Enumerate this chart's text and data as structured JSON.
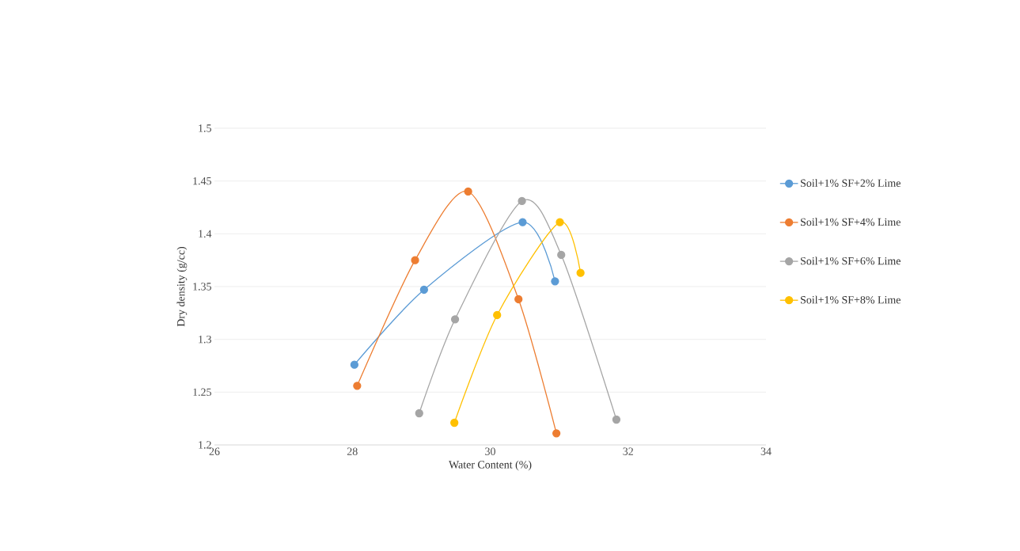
{
  "chart_data": {
    "type": "line",
    "xlabel": "Water Content (%)",
    "ylabel": "Dry density (g/cc)",
    "xlim": [
      26,
      34
    ],
    "xticks": [
      26,
      28,
      30,
      32,
      34
    ],
    "ylim": [
      1.2,
      1.5
    ],
    "yticks": [
      1.2,
      1.25,
      1.3,
      1.35,
      1.4,
      1.45,
      1.5
    ],
    "grid": "y",
    "legend": "right",
    "marker": "circle",
    "series": [
      {
        "name": "Soil+1% SF+2% Lime",
        "color": "#5b9bd5",
        "x": [
          28.03,
          29.04,
          30.47,
          30.94
        ],
        "values": [
          1.276,
          1.347,
          1.411,
          1.355
        ]
      },
      {
        "name": "Soil+1% SF+4% Lime",
        "color": "#ed7d31",
        "x": [
          28.07,
          28.91,
          29.68,
          30.41,
          30.96
        ],
        "values": [
          1.256,
          1.375,
          1.44,
          1.338,
          1.211
        ]
      },
      {
        "name": "Soil+1% SF+6% Lime",
        "color": "#a5a5a5",
        "x": [
          28.97,
          29.49,
          30.46,
          31.03,
          31.83
        ],
        "values": [
          1.23,
          1.319,
          1.431,
          1.38,
          1.224
        ]
      },
      {
        "name": "Soil+1% SF+8% Lime",
        "color": "#ffc000",
        "x": [
          29.48,
          30.1,
          31.01,
          31.31
        ],
        "values": [
          1.221,
          1.323,
          1.411,
          1.363
        ]
      }
    ]
  }
}
